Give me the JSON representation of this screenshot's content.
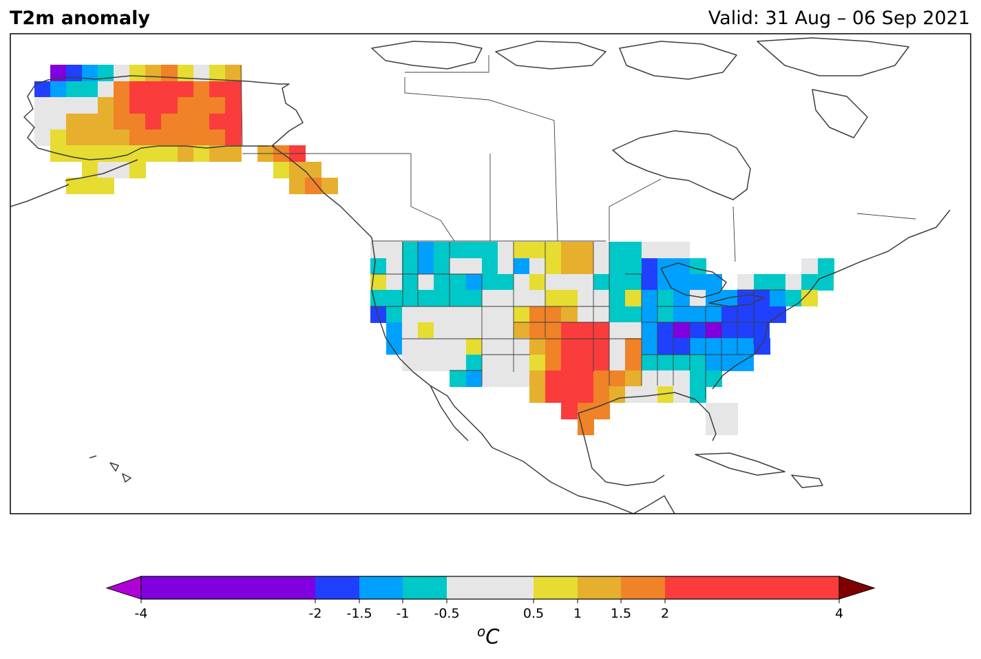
{
  "title": "T2m anomaly",
  "valid": "Valid: 31 Aug – 06 Sep 2021",
  "colorbar": {
    "unit_base": "C",
    "unit_sup": "o",
    "tick_labels": [
      "-4",
      "-2",
      "-1.5",
      "-1",
      "-0.5",
      "0.5",
      "1",
      "1.5",
      "2",
      "4"
    ],
    "bins": [
      {
        "from": -4,
        "to": -2,
        "color": "#8000e0"
      },
      {
        "from": -2,
        "to": -1.5,
        "color": "#2040ff"
      },
      {
        "from": -1.5,
        "to": -1,
        "color": "#00a0ff"
      },
      {
        "from": -1,
        "to": -0.5,
        "color": "#00c8c8"
      },
      {
        "from": -0.5,
        "to": 0.5,
        "color": "#e6e6e6"
      },
      {
        "from": 0.5,
        "to": 1,
        "color": "#e6dc32"
      },
      {
        "from": 1,
        "to": 1.5,
        "color": "#e6af2d"
      },
      {
        "from": 1.5,
        "to": 2,
        "color": "#f08228"
      },
      {
        "from": 2,
        "to": 4,
        "color": "#fa3c3c"
      }
    ],
    "extend_low_color": "#b000d8",
    "extend_high_color": "#800000"
  }
}
